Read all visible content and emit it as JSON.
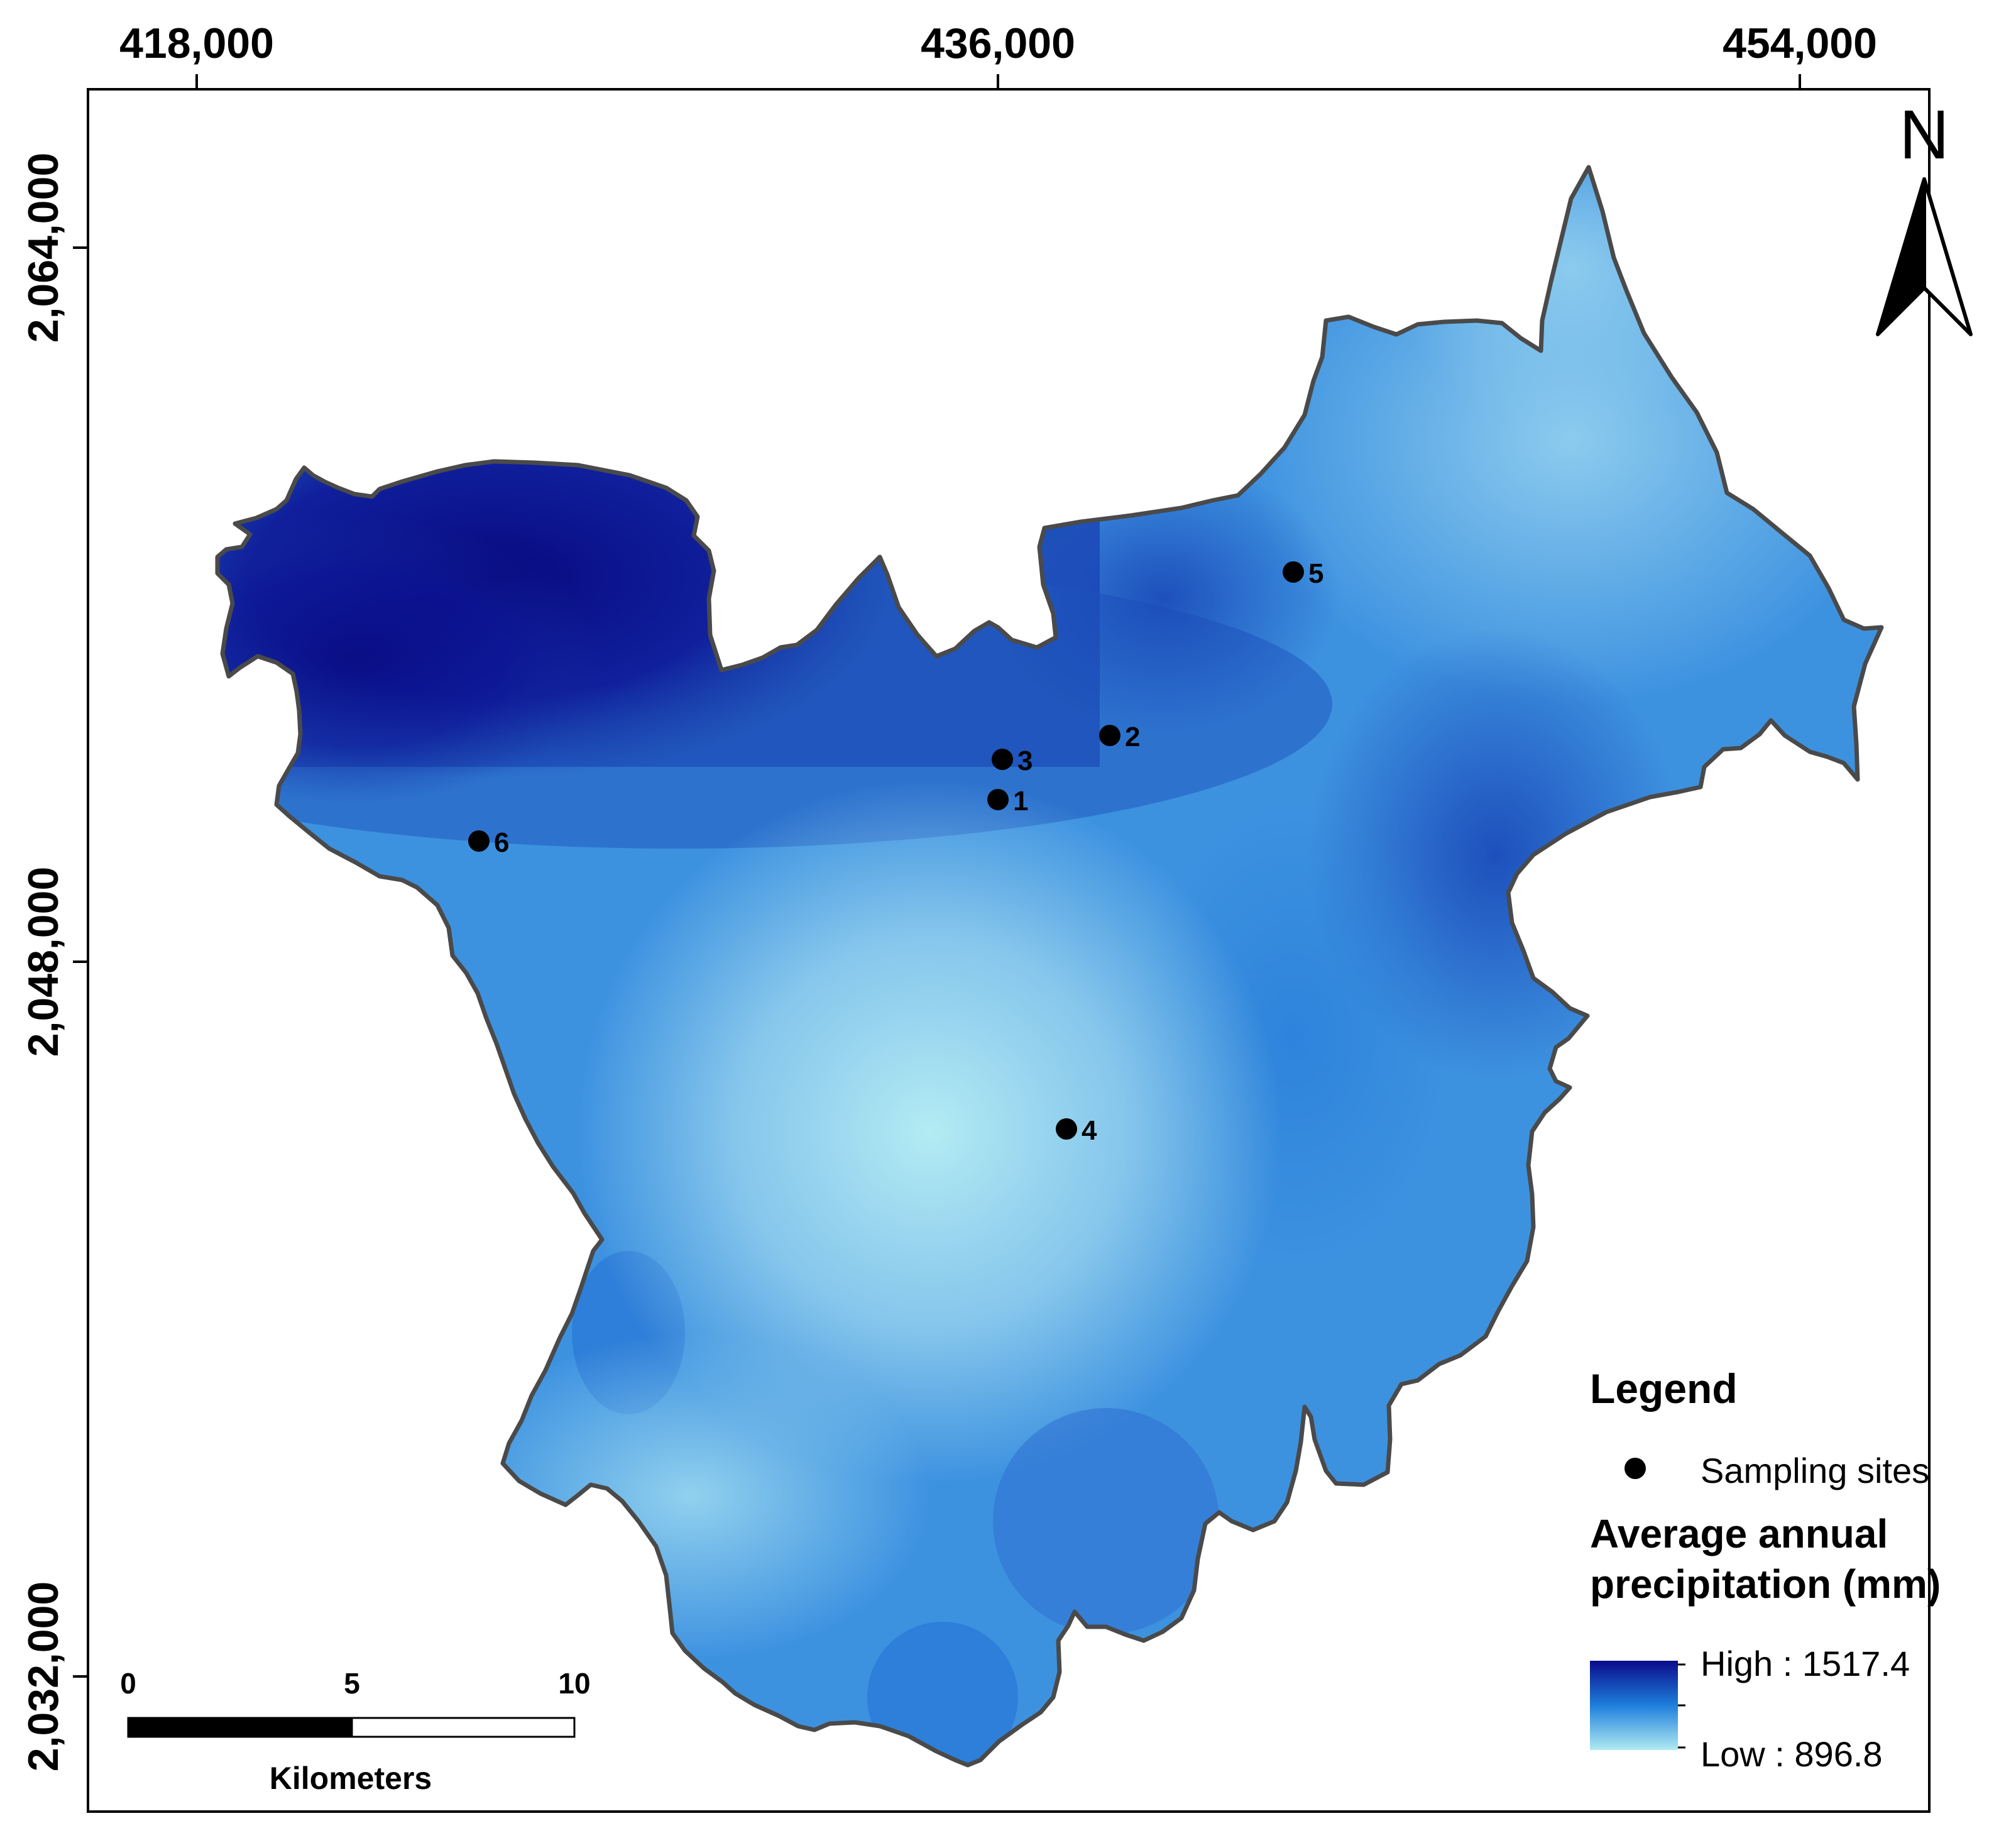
{
  "map": {
    "x_ticks": [
      "418,000",
      "436,000",
      "454,000"
    ],
    "y_ticks": [
      "2,064,000",
      "2,048,000",
      "2,032,000"
    ],
    "north_label": "N",
    "sites": [
      {
        "id": "1",
        "label": "1"
      },
      {
        "id": "2",
        "label": "2"
      },
      {
        "id": "3",
        "label": "3"
      },
      {
        "id": "4",
        "label": "4"
      },
      {
        "id": "5",
        "label": "5"
      },
      {
        "id": "6",
        "label": "6"
      }
    ],
    "precipitation_range": {
      "high": 1517.4,
      "low": 896.8
    },
    "colors": {
      "high": "#0a0a8a",
      "mid": "#1e7fdc",
      "low": "#b0eaf2",
      "boundary": "#4a4a4a",
      "site": "#000000"
    }
  },
  "legend": {
    "title": "Legend",
    "sites_label": "Sampling sites",
    "raster_title_line1": "Average annual",
    "raster_title_line2": "precipitation (mm)",
    "high_label": "High : 1517.4",
    "low_label": "Low : 896.8"
  },
  "scale_bar": {
    "ticks": [
      "0",
      "5",
      "10"
    ],
    "unit": "Kilometers"
  }
}
